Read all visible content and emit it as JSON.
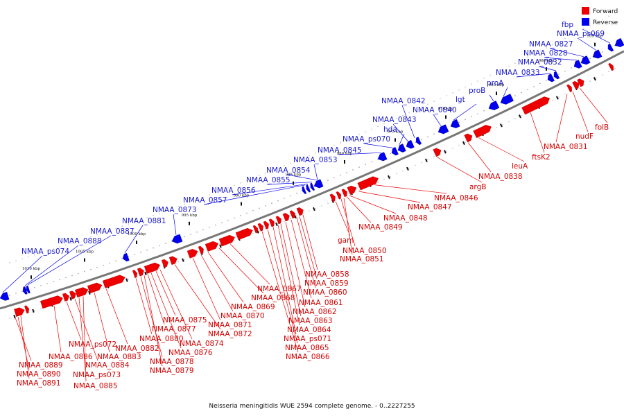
{
  "legend": {
    "forward_label": "Forward",
    "reverse_label": "Reverse",
    "forward_color": "#ee0000",
    "reverse_color": "#0000ee"
  },
  "caption": "Neisseria meningitidis WUE 2594 complete genome. - 0..2227255",
  "scale_ticks": [
    "955 kbp",
    "960 kbp",
    "965 kbp",
    "970 kbp",
    "975 kbp",
    "980 kbp",
    "985 kbp",
    "990 kbp",
    "995 kbp",
    "1000 kbp",
    "1005 kbp",
    "1010 kbp"
  ],
  "forward_genes": [
    "NMAA_0889",
    "NMAA_0890",
    "NMAA_0891",
    "NMAA_0886",
    "NMAA_ps072",
    "NMAA_0884",
    "NMAA_ps073",
    "NMAA_0885",
    "NMAA_0883",
    "NMAA_0882",
    "NMAA_0880",
    "NMAA_0878",
    "NMAA_0879",
    "NMAA_0877",
    "NMAA_0875",
    "NMAA_0876",
    "NMAA_0874",
    "NMAA_0872",
    "NMAA_0871",
    "NMAA_0870",
    "NMAA_0869",
    "NMAA_0868",
    "NMAA_0867",
    "NMAA_0866",
    "NMAA_0865",
    "NMAA_ps071",
    "NMAA_0864",
    "NMAA_0863",
    "NMAA_0862",
    "NMAA_0861",
    "NMAA_0860",
    "NMAA_0859",
    "NMAA_0858",
    "gam",
    "NMAA_0850",
    "NMAA_0851",
    "NMAA_0849",
    "NMAA_0848",
    "NMAA_0847",
    "NMAA_0846",
    "argB",
    "NMAA_0838",
    "leuA",
    "ftsK2",
    "NMAA_0831",
    "nudF",
    "folB"
  ],
  "reverse_genes": [
    "NMAA_ps074",
    "NMAA_0888",
    "NMAA_0887",
    "NMAA_0881",
    "NMAA_0873",
    "NMAA_0857",
    "NMAA_0856",
    "NMAA_0855",
    "NMAA_0854",
    "NMAA_0853",
    "NMAA_0845",
    "NMAA_ps070",
    "hda",
    "NMAA_0843",
    "NMAA_0842",
    "NMAA_0840",
    "lgt",
    "proB",
    "proA",
    "NMAA_0833",
    "NMAA_0832",
    "NMAA_0828",
    "NMAA_0827",
    "NMAA_ps069",
    "fbp"
  ]
}
